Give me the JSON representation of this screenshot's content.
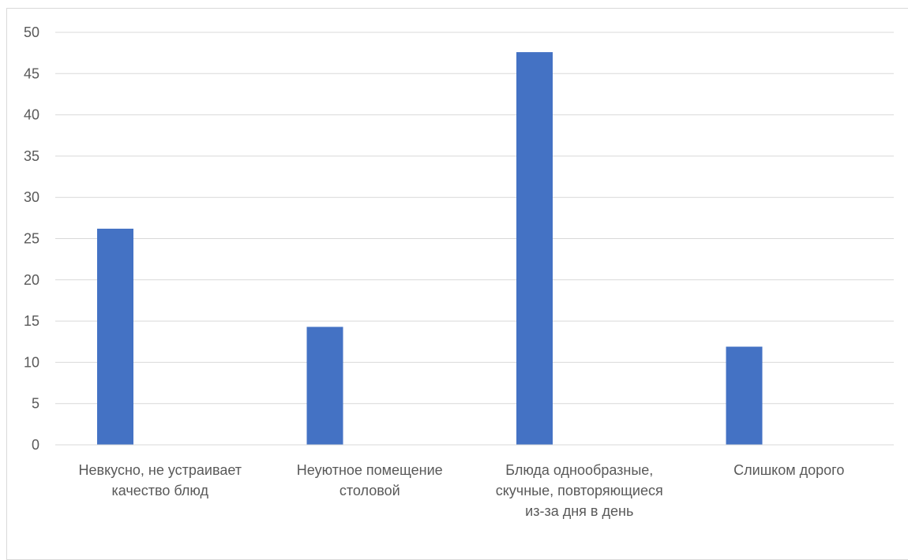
{
  "chart_data": {
    "type": "bar",
    "categories": [
      [
        "Невкусно, не устраивает",
        "качество блюд"
      ],
      [
        "Неуютное помещение",
        "столовой"
      ],
      [
        "Блюда однообразные,",
        "скучные, повторяющиеся",
        "из-за дня в день"
      ],
      [
        "Слишком дорого"
      ]
    ],
    "values": [
      26.2,
      14.3,
      47.6,
      11.9
    ],
    "ylim": [
      0,
      50
    ],
    "yticks": [
      0,
      5,
      10,
      15,
      20,
      25,
      30,
      35,
      40,
      45,
      50
    ],
    "grid": true,
    "bar_color": "#4472C4",
    "grid_color": "#d9d9d9",
    "title": "",
    "xlabel": "",
    "ylabel": ""
  }
}
